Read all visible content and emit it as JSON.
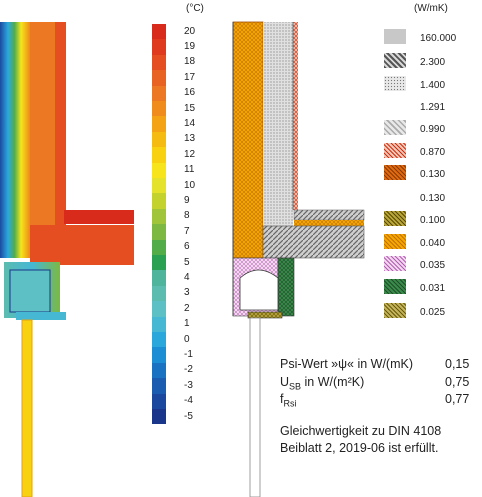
{
  "scale": {
    "unit": "(°C)",
    "labels": [
      "20",
      "19",
      "18",
      "17",
      "16",
      "15",
      "14",
      "13",
      "12",
      "11",
      "10",
      "9",
      "8",
      "7",
      "6",
      "5",
      "4",
      "3",
      "2",
      "1",
      "0",
      "-1",
      "-2",
      "-3",
      "-4",
      "-5"
    ],
    "colors": [
      "#d92b1c",
      "#e03a1e",
      "#e44e20",
      "#e86322",
      "#ec7824",
      "#f08c1c",
      "#f4a315",
      "#f6bb10",
      "#f8d210",
      "#f7e41a",
      "#e4e22a",
      "#c4d22e",
      "#a0c43a",
      "#7cb842",
      "#52ac48",
      "#2aa052",
      "#4eb49c",
      "#5cbcb0",
      "#5cc0c4",
      "#46b8d4",
      "#2aa8dc",
      "#1c8ed4",
      "#1a72c2",
      "#1a5cb0",
      "#1a489e",
      "#1a368a"
    ]
  },
  "materials": {
    "unit": "(W/mK)",
    "items": [
      {
        "label": "160.000",
        "swatch": "lightgray"
      },
      {
        "label": "2.300",
        "swatch": "hatch-dark"
      },
      {
        "label": "1.400",
        "swatch": "stipple"
      },
      {
        "label": "1.291",
        "swatch": "none"
      },
      {
        "label": "0.990",
        "swatch": "hatch-light"
      },
      {
        "label": "0.870",
        "swatch": "brick-red"
      },
      {
        "label": "0.130",
        "swatch": "cross-orange"
      },
      {
        "label": "0.130",
        "swatch": "none"
      },
      {
        "label": "0.100",
        "swatch": "cross-olive"
      },
      {
        "label": "0.040",
        "swatch": "cross-yellow"
      },
      {
        "label": "0.035",
        "swatch": "cross-pink"
      },
      {
        "label": "0.031",
        "swatch": "cross-green"
      },
      {
        "label": "0.025",
        "swatch": "cross-khaki"
      }
    ]
  },
  "results": [
    {
      "label_main": "Psi-Wert »ψ« in W/(mK)",
      "label_sub": "",
      "label_tail": "",
      "value": "0,15"
    },
    {
      "label_main": "U",
      "label_sub": "SB",
      "label_tail": " in W/(m²K)",
      "value": "0,75"
    },
    {
      "label_main": "f",
      "label_sub": "Rsi",
      "label_tail": "",
      "value": "0,77"
    }
  ],
  "note": "Gleichwertigkeit zu DIN 4108 Beiblatt 2, 2019-06 ist erfüllt."
}
